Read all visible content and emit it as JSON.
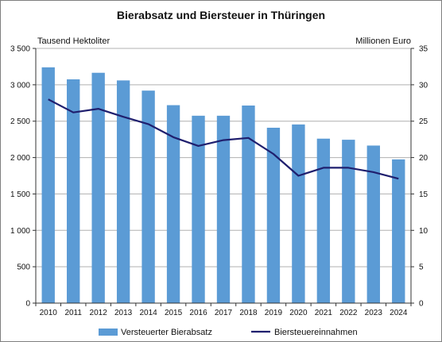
{
  "chart_data": {
    "type": "bar",
    "title": "Bierabsatz und Biersteuer in Thüringen",
    "ylabel_left": "Tausend Hektoliter",
    "ylabel_right": "Millionen Euro",
    "categories": [
      "2010",
      "2011",
      "2012",
      "2013",
      "2014",
      "2015",
      "2016",
      "2017",
      "2018",
      "2019",
      "2020",
      "2021",
      "2022",
      "2023",
      "2024"
    ],
    "ylim_left": [
      0,
      3500
    ],
    "ylim_right": [
      0,
      35
    ],
    "yticks_left": [
      0,
      500,
      1000,
      1500,
      2000,
      2500,
      3000,
      3500
    ],
    "ytick_labels_left": [
      "0",
      "500",
      "1 000",
      "1 500",
      "2 000",
      "2 500",
      "3 000",
      "3 500"
    ],
    "yticks_right": [
      0,
      5,
      10,
      15,
      20,
      25,
      30,
      35
    ],
    "ytick_labels_right": [
      "0",
      "5",
      "10",
      "15",
      "20",
      "25",
      "30",
      "35"
    ],
    "grid": true,
    "legend_position": "bottom",
    "series": [
      {
        "name": "Versteuerter Bierabsatz",
        "type": "bar",
        "axis": "left",
        "color": "#5b9bd5",
        "values": [
          3240,
          3075,
          3165,
          3060,
          2920,
          2720,
          2575,
          2575,
          2715,
          2410,
          2455,
          2260,
          2245,
          2165,
          1975
        ]
      },
      {
        "name": "Biersteuereinnahmen",
        "type": "line",
        "axis": "right",
        "color": "#1f1f6e",
        "values": [
          28.0,
          26.2,
          26.7,
          25.6,
          24.6,
          22.8,
          21.6,
          22.4,
          22.7,
          20.5,
          17.5,
          18.6,
          18.6,
          18.0,
          17.1
        ]
      }
    ]
  }
}
